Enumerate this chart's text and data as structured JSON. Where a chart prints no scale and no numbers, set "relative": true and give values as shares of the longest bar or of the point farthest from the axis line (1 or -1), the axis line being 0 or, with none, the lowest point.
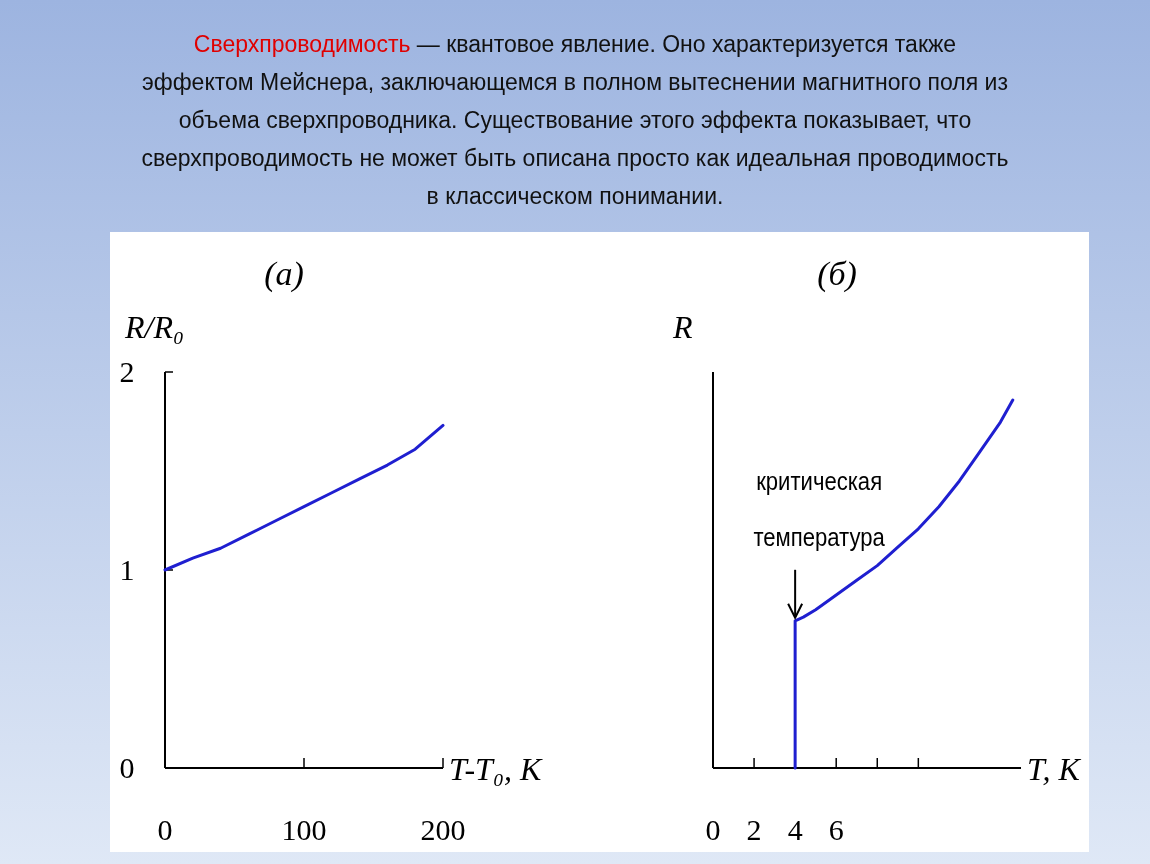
{
  "chart_data": [
    {
      "type": "line",
      "title": "(a)",
      "xlabel": "T-T₀, K",
      "ylabel": "R/R₀",
      "x": [
        0,
        20,
        40,
        60,
        80,
        100,
        120,
        140,
        160,
        180,
        200
      ],
      "series": [
        {
          "color": "#1f1fd0",
          "values": [
            1.0,
            1.06,
            1.11,
            1.18,
            1.25,
            1.32,
            1.39,
            1.46,
            1.53,
            1.61,
            1.73
          ]
        }
      ],
      "xlim": [
        0,
        200
      ],
      "xticks": [
        0,
        100,
        200
      ],
      "ylim": [
        0,
        2
      ],
      "yticks": [
        0,
        1,
        2
      ],
      "annotations": [
        "Сверхпроводимость",
        "— квантовое явление. Оно характеризуется также",
        "эффектом Мейснера, заключающемся в полном вытеснении магнитного поля из",
        "объема сверхпроводника. Существование этого эффекта показывает, что",
        "сверхпроводимость не может быть описана просто как идеальная проводимость",
        "в классическом понимании."
      ]
    },
    {
      "type": "line",
      "title": "(б)",
      "xlabel": "T, K",
      "ylabel": "R",
      "relative": true,
      "x": [
        4,
        4,
        4.4,
        5,
        6,
        7,
        8,
        9,
        10,
        11,
        12,
        13,
        14,
        14.6
      ],
      "series": [
        {
          "color": "#1f1fd0",
          "values": [
            0,
            0.4,
            0.41,
            0.43,
            0.47,
            0.51,
            0.55,
            0.6,
            0.65,
            0.71,
            0.78,
            0.86,
            0.94,
            1.0
          ]
        }
      ],
      "xlim": [
        0,
        15
      ],
      "xticks": [
        0,
        2,
        4,
        6,
        {
          "value": 8,
          "label": null
        },
        {
          "value": 10,
          "label": null
        }
      ],
      "annotations": [
        {
          "text": "критическая температура",
          "x": 4,
          "y": 0.4
        }
      ]
    }
  ]
}
